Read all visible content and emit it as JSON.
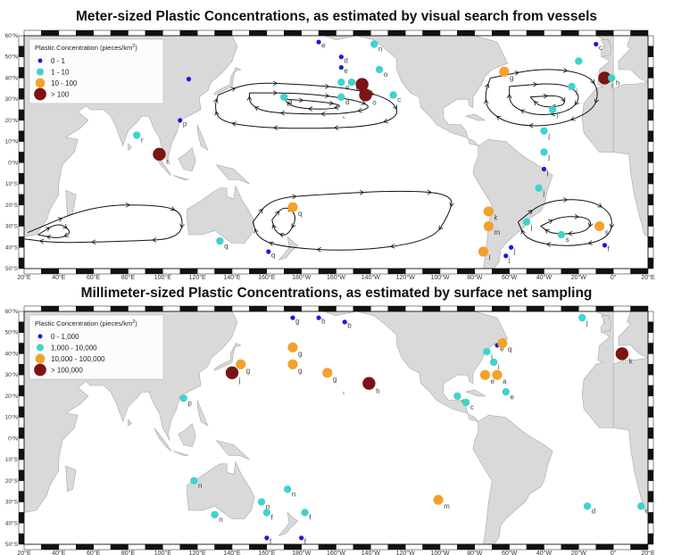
{
  "colors": {
    "land": "#d9d9d9",
    "coast": "#a8a8a8",
    "c0": "#1a1adb",
    "c1": "#3fd3cf",
    "c2": "#f3a12a",
    "c3": "#7c1414",
    "gyre": "#111111"
  },
  "lon_ticks": [
    "20°E",
    "40°E",
    "60°E",
    "80°E",
    "100°E",
    "120°E",
    "140°E",
    "160°E",
    "180°W",
    "160°W",
    "140°W",
    "120°W",
    "100°W",
    "80°W",
    "60°W",
    "40°W",
    "20°W",
    "0°",
    "20°E"
  ],
  "lat_ticks": [
    "60°N",
    "50°N",
    "40°N",
    "30°N",
    "20°N",
    "10°N",
    "0°N",
    "10°S",
    "20°S",
    "30°S",
    "40°S",
    "50°S"
  ],
  "maps": [
    {
      "title": "Meter-sized Plastic Concentrations, as estimated by visual search from vessels",
      "legend_title": "Plastic Concentration (pieces/km",
      "legend_sup": "2",
      "legend_close": ")",
      "legend": [
        "0 - 1",
        "1 - 10",
        "10 - 100",
        "> 100"
      ],
      "points": [
        {
          "lon": 115,
          "lat": 39.5,
          "c": 0,
          "l": ""
        },
        {
          "lon": 110,
          "lat": 20,
          "c": 0,
          "l": "p"
        },
        {
          "lon": 85,
          "lat": 13,
          "c": 1,
          "l": "r"
        },
        {
          "lon": 98,
          "lat": 4,
          "c": 3,
          "l": "r"
        },
        {
          "lon": 170,
          "lat": 31,
          "c": 1,
          "l": "d"
        },
        {
          "lon": -170,
          "lat": 57,
          "c": 0,
          "l": "e"
        },
        {
          "lon": -157,
          "lat": 50,
          "c": 0,
          "l": "d"
        },
        {
          "lon": -157,
          "lat": 45,
          "c": 0,
          "l": "e"
        },
        {
          "lon": -157,
          "lat": 38,
          "c": 1,
          "l": "e"
        },
        {
          "lon": -151,
          "lat": 38,
          "c": 1,
          "l": "a"
        },
        {
          "lon": -157,
          "lat": 31,
          "c": 1,
          "l": "d"
        },
        {
          "lon": -145,
          "lat": 37,
          "c": 3,
          "l": "a"
        },
        {
          "lon": -143,
          "lat": 32,
          "c": 3,
          "l": "o"
        },
        {
          "lon": -138,
          "lat": 56,
          "c": 1,
          "l": "n"
        },
        {
          "lon": -135,
          "lat": 44,
          "c": 1,
          "l": "o"
        },
        {
          "lon": -127,
          "lat": 32,
          "c": 1,
          "l": "c"
        },
        {
          "lon": -63,
          "lat": 43,
          "c": 2,
          "l": "g"
        },
        {
          "lon": -20,
          "lat": 48,
          "c": 1,
          "l": ""
        },
        {
          "lon": -10,
          "lat": 56,
          "c": 0,
          "l": "c"
        },
        {
          "lon": -5,
          "lat": 40,
          "c": 3,
          "l": "i"
        },
        {
          "lon": -1,
          "lat": 40,
          "c": 1,
          "l": "h"
        },
        {
          "lon": -24,
          "lat": 36,
          "c": 1,
          "l": "j"
        },
        {
          "lon": -35,
          "lat": 25,
          "c": 1,
          "l": "j"
        },
        {
          "lon": -40,
          "lat": 15,
          "c": 1,
          "l": "j"
        },
        {
          "lon": -40,
          "lat": 5,
          "c": 1,
          "l": "j"
        },
        {
          "lon": -40,
          "lat": -3,
          "c": 0,
          "l": "j"
        },
        {
          "lon": -43,
          "lat": -12,
          "c": 1,
          "l": "j"
        },
        {
          "lon": -50,
          "lat": -28,
          "c": 1,
          "l": "j"
        },
        {
          "lon": -30,
          "lat": -34,
          "c": 1,
          "l": "s"
        },
        {
          "lon": -8,
          "lat": -30,
          "c": 2,
          "l": "s"
        },
        {
          "lon": -5,
          "lat": -39,
          "c": 0,
          "l": "f"
        },
        {
          "lon": -59,
          "lat": -40,
          "c": 0,
          "l": "j"
        },
        {
          "lon": -62,
          "lat": -44,
          "c": 0,
          "l": "j"
        },
        {
          "lon": -72,
          "lat": -23,
          "c": 2,
          "l": "k"
        },
        {
          "lon": -72,
          "lat": -30,
          "c": 2,
          "l": "m"
        },
        {
          "lon": -75,
          "lat": -42,
          "c": 2,
          "l": "l"
        },
        {
          "lon": 175,
          "lat": -21,
          "c": 2,
          "l": "q"
        },
        {
          "lon": 133,
          "lat": -37,
          "c": 1,
          "l": "q"
        },
        {
          "lon": 161,
          "lat": -42,
          "c": 0,
          "l": "q"
        }
      ]
    },
    {
      "title": "Millimeter-sized Plastic Concentrations, as estimated by surface net sampling",
      "legend_title": "Plastic Concentration (pieces/km",
      "legend_sup": "2",
      "legend_close": ")",
      "legend": [
        "0 - 1,000",
        "1,000 - 10,000",
        "10,000 - 100,000",
        "> 100,000"
      ],
      "points": [
        {
          "lon": 175,
          "lat": 57,
          "c": 0,
          "l": "g"
        },
        {
          "lon": -170,
          "lat": 57,
          "c": 0,
          "l": "b"
        },
        {
          "lon": -155,
          "lat": 55,
          "c": 0,
          "l": "b"
        },
        {
          "lon": 175,
          "lat": 43,
          "c": 2,
          "l": "g"
        },
        {
          "lon": 175,
          "lat": 35,
          "c": 2,
          "l": "g"
        },
        {
          "lon": 145,
          "lat": 35,
          "c": 2,
          "l": "g"
        },
        {
          "lon": 140,
          "lat": 31,
          "c": 3,
          "l": "j"
        },
        {
          "lon": -165,
          "lat": 31,
          "c": 2,
          "l": "g"
        },
        {
          "lon": -141,
          "lat": 26,
          "c": 3,
          "l": "h"
        },
        {
          "lon": 112,
          "lat": 19,
          "c": 1,
          "l": "p"
        },
        {
          "lon": -67,
          "lat": 44,
          "c": 0,
          "l": "e"
        },
        {
          "lon": -64,
          "lat": 45,
          "c": 2,
          "l": "q"
        },
        {
          "lon": -73,
          "lat": 41,
          "c": 1,
          "l": "i"
        },
        {
          "lon": -69,
          "lat": 36,
          "c": 1,
          "l": "i"
        },
        {
          "lon": -74,
          "lat": 30,
          "c": 2,
          "l": "e"
        },
        {
          "lon": -67,
          "lat": 30,
          "c": 2,
          "l": "a"
        },
        {
          "lon": -62,
          "lat": 22,
          "c": 1,
          "l": "e"
        },
        {
          "lon": -90,
          "lat": 20,
          "c": 1,
          "l": "e"
        },
        {
          "lon": -85,
          "lat": 17,
          "c": 1,
          "l": "c"
        },
        {
          "lon": -18,
          "lat": 57,
          "c": 1,
          "l": "j"
        },
        {
          "lon": 5,
          "lat": 40,
          "c": 3,
          "l": "k"
        },
        {
          "lon": 118,
          "lat": -20,
          "c": 1,
          "l": "n"
        },
        {
          "lon": 157,
          "lat": -30,
          "c": 1,
          "l": "n"
        },
        {
          "lon": 172,
          "lat": -24,
          "c": 1,
          "l": "n"
        },
        {
          "lon": 130,
          "lat": -36,
          "c": 1,
          "l": "n"
        },
        {
          "lon": 160,
          "lat": -35,
          "c": 1,
          "l": "f"
        },
        {
          "lon": 182,
          "lat": -35,
          "c": 1,
          "l": "f"
        },
        {
          "lon": 160,
          "lat": -47,
          "c": 0,
          "l": "f"
        },
        {
          "lon": 180,
          "lat": -47,
          "c": 0,
          "l": "f"
        },
        {
          "lon": -101,
          "lat": -29,
          "c": 2,
          "l": "m"
        },
        {
          "lon": -15,
          "lat": -32,
          "c": 1,
          "l": "d"
        },
        {
          "lon": 16,
          "lat": -32,
          "c": 1,
          "l": "c"
        }
      ]
    }
  ]
}
